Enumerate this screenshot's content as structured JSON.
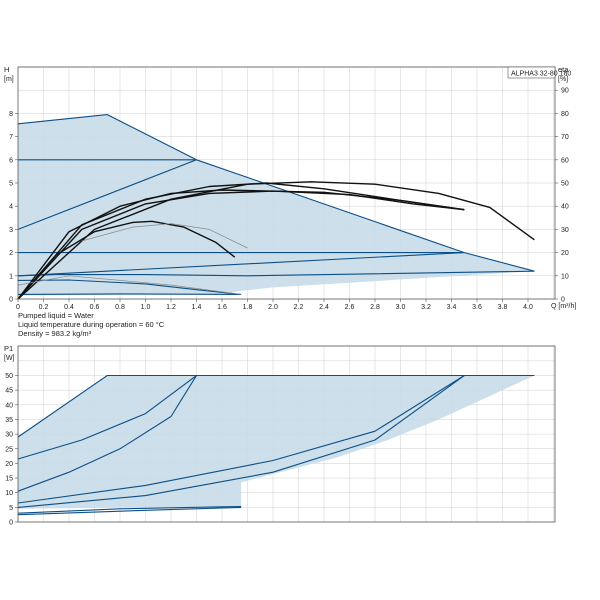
{
  "colors": {
    "envelope_fill": "#c6dbe8",
    "curve_blue": "#0d4f86",
    "curve_black": "#111111",
    "curve_gray": "#8a8a8a",
    "grid": "#cfcfcf",
    "frame": "#555555"
  },
  "info": {
    "liquid": "Pumped liquid = Water",
    "temperature": "Liquid temperature during operation = 60 °C",
    "density": "Density = 983.2 kg/m³"
  },
  "chart_data": [
    {
      "type": "line",
      "title": "ALPHA3 32-80 180",
      "x": {
        "label": "Q [m³/h]",
        "min": 0,
        "max": 4.4,
        "ticks": [
          "0",
          "0.2",
          "0.4",
          "0.6",
          "0.8",
          "1.0",
          "1.2",
          "1.4",
          "1.6",
          "1.8",
          "2.0",
          "2.2",
          "2.4",
          "2.6",
          "2.8",
          "3.0",
          "3.2",
          "3.4",
          "3.6",
          "3.8",
          "4.0"
        ]
      },
      "y_left": {
        "label_top": "H",
        "label_unit": "[m]",
        "min": 0,
        "max": 10,
        "ticks": [
          "0",
          "1",
          "2",
          "3",
          "4",
          "5",
          "6",
          "7",
          "8"
        ]
      },
      "y_right": {
        "label_top": "eta",
        "label_unit": "[%]",
        "min": 0,
        "max": 100,
        "ticks": [
          "0",
          "10",
          "20",
          "30",
          "40",
          "50",
          "60",
          "70",
          "80",
          "90"
        ]
      },
      "grid": true,
      "envelope": [
        [
          0,
          7.55
        ],
        [
          0.7,
          7.95
        ],
        [
          1.4,
          6.0
        ],
        [
          3.5,
          2.0
        ],
        [
          4.05,
          1.2
        ],
        [
          3.3,
          0.95
        ],
        [
          2.6,
          0.7
        ],
        [
          2.0,
          0.5
        ],
        [
          1.75,
          0.35
        ],
        [
          1.6,
          0.2
        ],
        [
          0,
          0.15
        ]
      ],
      "series": [
        {
          "style": "blue",
          "points": [
            [
              0,
              7.55
            ],
            [
              0.7,
              7.95
            ],
            [
              1.4,
              6.0
            ],
            [
              3.5,
              2.0
            ],
            [
              4.05,
              1.2
            ]
          ]
        },
        {
          "style": "blue",
          "points": [
            [
              0,
              6.0
            ],
            [
              1.4,
              6.0
            ]
          ]
        },
        {
          "style": "blue",
          "points": [
            [
              0,
              3.0
            ],
            [
              1.4,
              6.0
            ]
          ]
        },
        {
          "style": "blue",
          "points": [
            [
              0,
              2.0
            ],
            [
              3.5,
              2.0
            ]
          ]
        },
        {
          "style": "blue",
          "points": [
            [
              0,
              1.0
            ],
            [
              3.5,
              2.0
            ]
          ]
        },
        {
          "style": "blue",
          "points": [
            [
              0,
              1.0
            ],
            [
              0.3,
              1.05
            ],
            [
              1.0,
              1.05
            ],
            [
              1.8,
              1.0
            ],
            [
              4.05,
              1.2
            ]
          ]
        },
        {
          "style": "blue",
          "points": [
            [
              0,
              0.8
            ],
            [
              0.4,
              0.82
            ],
            [
              1.0,
              0.65
            ],
            [
              1.4,
              0.4
            ],
            [
              1.75,
              0.2
            ]
          ]
        },
        {
          "style": "blue",
          "points": [
            [
              0,
              0.2
            ],
            [
              0.8,
              0.22
            ],
            [
              1.75,
              0.2
            ]
          ]
        },
        {
          "style": "black",
          "points": [
            [
              0,
              0
            ],
            [
              0.4,
              2.9
            ],
            [
              0.8,
              4.0
            ],
            [
              1.2,
              4.55
            ],
            [
              1.6,
              4.7
            ],
            [
              2.4,
              4.6
            ],
            [
              3.0,
              4.25
            ],
            [
              3.5,
              3.85
            ]
          ]
        },
        {
          "style": "black",
          "points": [
            [
              0,
              0
            ],
            [
              0.5,
              3.0
            ],
            [
              1.0,
              4.1
            ],
            [
              1.5,
              4.55
            ],
            [
              2.0,
              4.65
            ],
            [
              2.6,
              4.5
            ],
            [
              3.1,
              4.1
            ],
            [
              3.5,
              3.85
            ]
          ]
        },
        {
          "style": "black",
          "points": [
            [
              0,
              0
            ],
            [
              0.5,
              3.2
            ],
            [
              1.0,
              4.3
            ],
            [
              1.5,
              4.85
            ],
            [
              1.95,
              5.0
            ],
            [
              2.4,
              4.75
            ],
            [
              3.0,
              4.25
            ],
            [
              3.5,
              3.85
            ]
          ]
        },
        {
          "style": "black",
          "points": [
            [
              0,
              0
            ],
            [
              0.6,
              3.0
            ],
            [
              1.2,
              4.3
            ],
            [
              1.8,
              4.95
            ],
            [
              2.3,
              5.05
            ],
            [
              2.8,
              4.95
            ],
            [
              3.3,
              4.55
            ],
            [
              3.7,
              3.95
            ],
            [
              4.05,
              2.55
            ]
          ]
        },
        {
          "style": "black",
          "points": [
            [
              0,
              0
            ],
            [
              0.3,
              1.9
            ],
            [
              0.6,
              2.9
            ],
            [
              0.9,
              3.3
            ],
            [
              1.05,
              3.35
            ],
            [
              1.3,
              3.1
            ],
            [
              1.55,
              2.45
            ],
            [
              1.7,
              1.8
            ]
          ]
        },
        {
          "style": "gray",
          "points": [
            [
              0.5,
              2.5
            ],
            [
              0.9,
              3.1
            ],
            [
              1.2,
              3.25
            ],
            [
              1.5,
              3.0
            ],
            [
              1.8,
              2.2
            ]
          ]
        },
        {
          "style": "gray",
          "points": [
            [
              0,
              0.6
            ],
            [
              0.4,
              1.0
            ],
            [
              0.8,
              0.8
            ],
            [
              1.2,
              0.6
            ],
            [
              1.75,
              0.2
            ]
          ]
        }
      ]
    },
    {
      "type": "line",
      "title": "",
      "x": {
        "min": 0,
        "max": 4.4
      },
      "y_left": {
        "label_top": "P1",
        "label_unit": "[W]",
        "min": 0,
        "max": 55,
        "ticks": [
          "0",
          "5",
          "10",
          "15",
          "20",
          "25",
          "30",
          "35",
          "40",
          "45",
          "50"
        ]
      },
      "grid": true,
      "envelope": [
        [
          0,
          29
        ],
        [
          0.7,
          50
        ],
        [
          4.05,
          50
        ],
        [
          3.7,
          43
        ],
        [
          3.3,
          35
        ],
        [
          2.9,
          28
        ],
        [
          2.5,
          22
        ],
        [
          2.1,
          17.5
        ],
        [
          1.75,
          13.5
        ],
        [
          1.75,
          5.3
        ],
        [
          0,
          4.5
        ]
      ],
      "series": [
        {
          "style": "blue",
          "points": [
            [
              0,
              29
            ],
            [
              0.7,
              50
            ],
            [
              4.05,
              50
            ]
          ]
        },
        {
          "style": "blue",
          "points": [
            [
              0,
              21.5
            ],
            [
              0.5,
              28
            ],
            [
              1.0,
              37
            ],
            [
              1.4,
              50
            ]
          ]
        },
        {
          "style": "blue",
          "points": [
            [
              0,
              10.5
            ],
            [
              0.4,
              17
            ],
            [
              0.8,
              25
            ],
            [
              1.2,
              36
            ],
            [
              1.4,
              50
            ]
          ]
        },
        {
          "style": "blue",
          "points": [
            [
              0,
              6.5
            ],
            [
              1.0,
              12.5
            ],
            [
              2.0,
              21
            ],
            [
              2.8,
              31
            ],
            [
              3.5,
              50
            ]
          ]
        },
        {
          "style": "blue",
          "points": [
            [
              0,
              5
            ],
            [
              1.0,
              9
            ],
            [
              2.0,
              17
            ],
            [
              2.8,
              28
            ],
            [
              3.5,
              50
            ]
          ]
        },
        {
          "style": "blue",
          "points": [
            [
              0,
              3
            ],
            [
              0.8,
              4.5
            ],
            [
              1.6,
              5.2
            ],
            [
              1.75,
              5.3
            ]
          ]
        },
        {
          "style": "blue",
          "points": [
            [
              0,
              2.5
            ],
            [
              1.0,
              4
            ],
            [
              1.75,
              5.0
            ]
          ]
        }
      ]
    }
  ]
}
